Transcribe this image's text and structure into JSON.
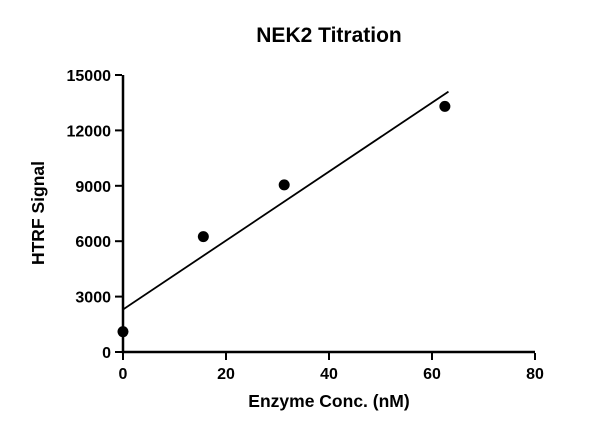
{
  "chart_data": {
    "type": "scatter",
    "title": "NEK2 Titration",
    "xlabel": "Enzyme Conc. (nM)",
    "ylabel": "HTRF Signal",
    "xlim": [
      0,
      80
    ],
    "ylim": [
      0,
      15000
    ],
    "x_ticks": [
      0,
      20,
      40,
      60,
      80
    ],
    "y_ticks": [
      0,
      3000,
      6000,
      9000,
      12000,
      15000
    ],
    "grid": false,
    "legend": "none",
    "marker_color": "#000000",
    "line_color": "#000000",
    "series": [
      {
        "name": "HTRF Signal",
        "marker": "filled-circle",
        "x": [
          0,
          15.6,
          31.3,
          62.5
        ],
        "y": [
          1100,
          6250,
          9050,
          13300
        ]
      }
    ],
    "fit_line": {
      "type": "linear",
      "x": [
        0,
        63.2
      ],
      "y": [
        2300,
        14100
      ]
    }
  }
}
